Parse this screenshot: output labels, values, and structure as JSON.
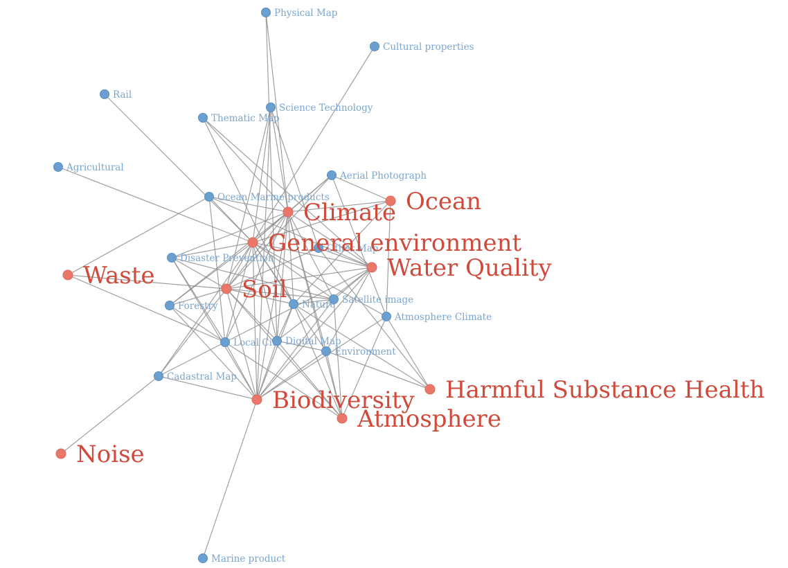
{
  "graph": {
    "colors": {
      "topic": "#e9776a",
      "topic_label": "#cf4a3a",
      "category": "#6a9fd0",
      "category_label": "#7aa6cf",
      "edge": "#8f8f8f"
    },
    "nodes": [
      {
        "id": "physical-map",
        "label": "Physical Map",
        "group": "category"
      },
      {
        "id": "cultural-properties",
        "label": "Cultural properties",
        "group": "category"
      },
      {
        "id": "rail",
        "label": "Rail",
        "group": "category"
      },
      {
        "id": "science-technology",
        "label": "Science Technology",
        "group": "category"
      },
      {
        "id": "thematic-map",
        "label": "Thematic Map",
        "group": "category"
      },
      {
        "id": "agricultural",
        "label": "Agricultural",
        "group": "category"
      },
      {
        "id": "aerial-photograph",
        "label": "Aerial Photograph",
        "group": "category"
      },
      {
        "id": "ocean-marine-products",
        "label": "Ocean Marine products",
        "group": "category"
      },
      {
        "id": "other-map",
        "label": "Other Map",
        "group": "category"
      },
      {
        "id": "disaster-prevention",
        "label": "Disaster Prevention",
        "group": "category"
      },
      {
        "id": "forestry",
        "label": "Forestry",
        "group": "category"
      },
      {
        "id": "nature",
        "label": "Nature",
        "group": "category"
      },
      {
        "id": "satellite-image",
        "label": "Satellite image",
        "group": "category"
      },
      {
        "id": "atmosphere-climate",
        "label": "Atmosphere Climate",
        "group": "category"
      },
      {
        "id": "local-city",
        "label": "Local City",
        "group": "category"
      },
      {
        "id": "digital-map",
        "label": "Digital Map",
        "group": "category"
      },
      {
        "id": "environment",
        "label": "Environment",
        "group": "category"
      },
      {
        "id": "cadastral-map",
        "label": "Cadastral Map",
        "group": "category"
      },
      {
        "id": "marine-product",
        "label": "Marine product",
        "group": "category"
      },
      {
        "id": "ocean",
        "label": "Ocean",
        "group": "topic"
      },
      {
        "id": "climate",
        "label": "Climate",
        "group": "topic"
      },
      {
        "id": "general-environment",
        "label": "General environment",
        "group": "topic"
      },
      {
        "id": "water-quality",
        "label": "Water Quality",
        "group": "topic"
      },
      {
        "id": "waste",
        "label": "Waste",
        "group": "topic"
      },
      {
        "id": "soil",
        "label": "Soil",
        "group": "topic"
      },
      {
        "id": "harmful-substance-health",
        "label": "Harmful Substance Health",
        "group": "topic"
      },
      {
        "id": "biodiversity",
        "label": "Biodiversity",
        "group": "topic"
      },
      {
        "id": "atmosphere",
        "label": "Atmosphere",
        "group": "topic"
      },
      {
        "id": "noise",
        "label": "Noise",
        "group": "topic"
      }
    ],
    "edges": [
      [
        "physical-map",
        "climate"
      ],
      [
        "physical-map",
        "digital-map"
      ],
      [
        "cultural-properties",
        "general-environment"
      ],
      [
        "rail",
        "general-environment"
      ],
      [
        "agricultural",
        "general-environment"
      ],
      [
        "science-technology",
        "climate"
      ],
      [
        "science-technology",
        "general-environment"
      ],
      [
        "science-technology",
        "soil"
      ],
      [
        "science-technology",
        "biodiversity"
      ],
      [
        "science-technology",
        "other-map"
      ],
      [
        "thematic-map",
        "climate"
      ],
      [
        "thematic-map",
        "water-quality"
      ],
      [
        "thematic-map",
        "nature"
      ],
      [
        "aerial-photograph",
        "ocean"
      ],
      [
        "aerial-photograph",
        "climate"
      ],
      [
        "aerial-photograph",
        "general-environment"
      ],
      [
        "aerial-photograph",
        "soil"
      ],
      [
        "aerial-photograph",
        "atmosphere-climate"
      ],
      [
        "ocean-marine-products",
        "climate"
      ],
      [
        "ocean-marine-products",
        "general-environment"
      ],
      [
        "ocean-marine-products",
        "waste"
      ],
      [
        "ocean-marine-products",
        "local-city"
      ],
      [
        "ocean-marine-products",
        "water-quality"
      ],
      [
        "ocean",
        "climate"
      ],
      [
        "ocean",
        "general-environment"
      ],
      [
        "ocean",
        "atmosphere-climate"
      ],
      [
        "ocean",
        "nature"
      ],
      [
        "climate",
        "general-environment"
      ],
      [
        "climate",
        "soil"
      ],
      [
        "climate",
        "disaster-prevention"
      ],
      [
        "climate",
        "forestry"
      ],
      [
        "climate",
        "nature"
      ],
      [
        "climate",
        "satellite-image"
      ],
      [
        "climate",
        "digital-map"
      ],
      [
        "climate",
        "local-city"
      ],
      [
        "climate",
        "water-quality"
      ],
      [
        "climate",
        "atmosphere"
      ],
      [
        "climate",
        "environment"
      ],
      [
        "climate",
        "biodiversity"
      ],
      [
        "general-environment",
        "disaster-prevention"
      ],
      [
        "general-environment",
        "soil"
      ],
      [
        "general-environment",
        "forestry"
      ],
      [
        "general-environment",
        "nature"
      ],
      [
        "general-environment",
        "satellite-image"
      ],
      [
        "general-environment",
        "local-city"
      ],
      [
        "general-environment",
        "digital-map"
      ],
      [
        "general-environment",
        "environment"
      ],
      [
        "general-environment",
        "water-quality"
      ],
      [
        "general-environment",
        "cadastral-map"
      ],
      [
        "general-environment",
        "biodiversity"
      ],
      [
        "general-environment",
        "atmosphere-climate"
      ],
      [
        "other-map",
        "water-quality"
      ],
      [
        "other-map",
        "soil"
      ],
      [
        "other-map",
        "harmful-substance-health"
      ],
      [
        "disaster-prevention",
        "soil"
      ],
      [
        "disaster-prevention",
        "satellite-image"
      ],
      [
        "disaster-prevention",
        "biodiversity"
      ],
      [
        "disaster-prevention",
        "local-city"
      ],
      [
        "waste",
        "soil"
      ],
      [
        "waste",
        "local-city"
      ],
      [
        "soil",
        "forestry"
      ],
      [
        "soil",
        "nature"
      ],
      [
        "soil",
        "cadastral-map"
      ],
      [
        "soil",
        "biodiversity"
      ],
      [
        "soil",
        "digital-map"
      ],
      [
        "soil",
        "satellite-image"
      ],
      [
        "soil",
        "water-quality"
      ],
      [
        "soil",
        "atmosphere"
      ],
      [
        "forestry",
        "local-city"
      ],
      [
        "forestry",
        "biodiversity"
      ],
      [
        "nature",
        "digital-map"
      ],
      [
        "nature",
        "biodiversity"
      ],
      [
        "nature",
        "atmosphere"
      ],
      [
        "nature",
        "harmful-substance-health"
      ],
      [
        "nature",
        "satellite-image"
      ],
      [
        "satellite-image",
        "biodiversity"
      ],
      [
        "satellite-image",
        "atmosphere"
      ],
      [
        "satellite-image",
        "water-quality"
      ],
      [
        "water-quality",
        "biodiversity"
      ],
      [
        "water-quality",
        "environment"
      ],
      [
        "water-quality",
        "digital-map"
      ],
      [
        "water-quality",
        "cadastral-map"
      ],
      [
        "atmosphere-climate",
        "harmful-substance-health"
      ],
      [
        "atmosphere-climate",
        "atmosphere"
      ],
      [
        "atmosphere-climate",
        "biodiversity"
      ],
      [
        "local-city",
        "biodiversity"
      ],
      [
        "local-city",
        "atmosphere"
      ],
      [
        "digital-map",
        "biodiversity"
      ],
      [
        "digital-map",
        "environment"
      ],
      [
        "digital-map",
        "atmosphere"
      ],
      [
        "environment",
        "biodiversity"
      ],
      [
        "environment",
        "harmful-substance-health"
      ],
      [
        "environment",
        "atmosphere"
      ],
      [
        "cadastral-map",
        "biodiversity"
      ],
      [
        "cadastral-map",
        "noise"
      ],
      [
        "biodiversity",
        "marine-product"
      ]
    ]
  }
}
